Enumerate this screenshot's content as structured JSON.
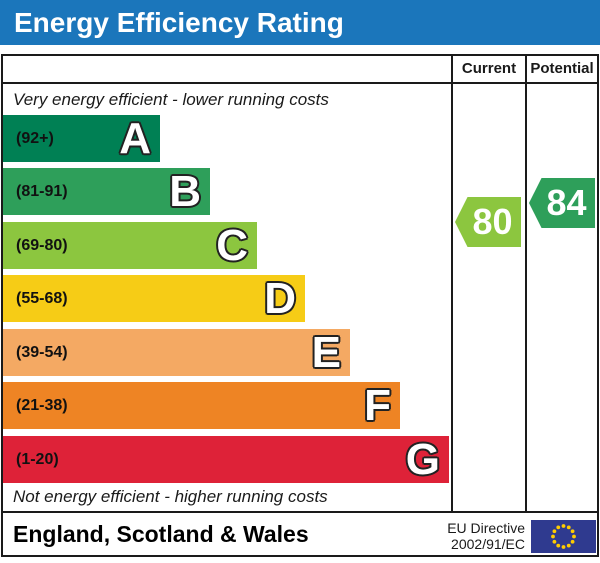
{
  "colors": {
    "title_bg": "#1b76bb",
    "border": "#1a1a1a"
  },
  "title": "Energy Efficiency Rating",
  "columns": {
    "current": "Current",
    "potential": "Potential"
  },
  "notes": {
    "top": "Very energy efficient - lower running costs",
    "bottom": "Not energy efficient - higher running costs"
  },
  "bands": [
    {
      "letter": "A",
      "range": "(92+)",
      "color": "#008054"
    },
    {
      "letter": "B",
      "range": "(81-91)",
      "color": "#2e9f5a"
    },
    {
      "letter": "C",
      "range": "(69-80)",
      "color": "#8cc63f"
    },
    {
      "letter": "D",
      "range": "(55-68)",
      "color": "#f6cc16"
    },
    {
      "letter": "E",
      "range": "(39-54)",
      "color": "#f4a963"
    },
    {
      "letter": "F",
      "range": "(21-38)",
      "color": "#ee8424"
    },
    {
      "letter": "G",
      "range": "(1-20)",
      "color": "#de2238"
    }
  ],
  "ratings": {
    "current": {
      "value": "80",
      "color": "#8cc63f"
    },
    "potential": {
      "value": "84",
      "color": "#2e9f5a"
    }
  },
  "footer": {
    "region": "England, Scotland & Wales",
    "directive_line1": "EU Directive",
    "directive_line2": "2002/91/EC",
    "flag_bg": "#2f3a8f",
    "flag_star": "#ffcc00"
  },
  "chart_data": {
    "type": "bar",
    "title": "Energy Efficiency Rating",
    "categories": [
      "A",
      "B",
      "C",
      "D",
      "E",
      "F",
      "G"
    ],
    "band_ranges": [
      "92+",
      "81-91",
      "69-80",
      "55-68",
      "39-54",
      "21-38",
      "1-20"
    ],
    "band_colors": [
      "#008054",
      "#2e9f5a",
      "#8cc63f",
      "#f6cc16",
      "#f4a963",
      "#ee8424",
      "#de2238"
    ],
    "series": [
      {
        "name": "Current",
        "value": 80
      },
      {
        "name": "Potential",
        "value": 84
      }
    ],
    "top_label": "Very energy efficient - lower running costs",
    "bottom_label": "Not energy efficient - higher running costs",
    "region_label": "England, Scotland & Wales",
    "directive_label": "EU Directive 2002/91/EC"
  }
}
